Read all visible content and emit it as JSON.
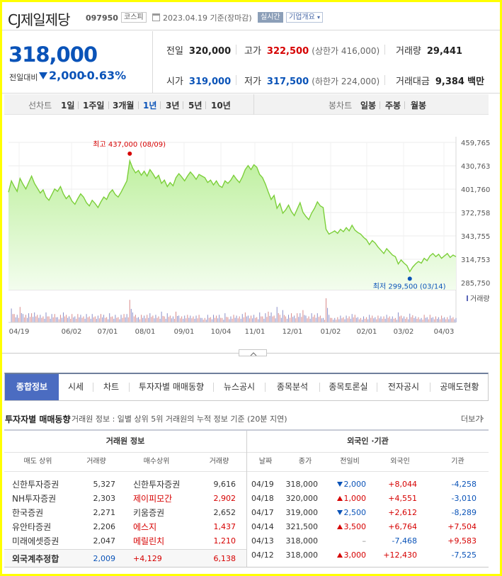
{
  "header": {
    "name": "CJ제일제당",
    "code": "097950",
    "market": "코스피",
    "date": "2023.04.19 기준(장마감)",
    "realtime_label": "실시간",
    "overview_label": "기업개요"
  },
  "price": {
    "current": "318,000",
    "change_label": "전일대비",
    "change": "2,000",
    "change_pct": "-0.63%",
    "prev_label": "전일",
    "prev": "320,000",
    "high_label": "고가",
    "high": "322,500",
    "upper_limit": "(상한가 416,000)",
    "volume_label": "거래량",
    "volume": "29,441",
    "open_label": "시가",
    "open": "319,000",
    "low_label": "저가",
    "low": "317,500",
    "lower_limit": "(하한가 224,000)",
    "amount_label": "거래대금",
    "amount": "9,384",
    "amount_unit": "백만"
  },
  "period_bar": {
    "line_label": "선차트",
    "periods": [
      "1일",
      "1주일",
      "3개월",
      "1년",
      "3년",
      "5년",
      "10년"
    ],
    "selected_period": "1년",
    "candle_label": "봉차트",
    "candles": [
      "일봉",
      "주봉",
      "월봉"
    ]
  },
  "chart_data": {
    "type": "area",
    "y_ticks": [
      "459,765",
      "430,763",
      "401,760",
      "372,758",
      "343,755",
      "314,753",
      "285,750"
    ],
    "ylim": [
      285750,
      459765
    ],
    "x_ticks": [
      "04/19",
      "06/02",
      "07/01",
      "08/01",
      "09/01",
      "10/04",
      "11/01",
      "12/01",
      "01/02",
      "02/01",
      "03/02",
      "04/03"
    ],
    "max_label": "최고 437,000 (08/09)",
    "min_label": "최저 299,500 (03/14)",
    "max_value": 437000,
    "min_value": 299500,
    "volume_legend": "거래량",
    "line_color": "#7ccf3a",
    "fill_color": "#d8f5c4",
    "series": [
      {
        "values": [
          398000,
          412000,
          405000,
          399000,
          415000,
          408000,
          402000,
          410000,
          418000,
          409000,
          403000,
          397000,
          401000,
          392000,
          388000,
          395000,
          402000,
          399000,
          405000,
          396000,
          390000,
          394000,
          387000,
          383000,
          390000,
          396000,
          392000,
          385000,
          381000,
          388000,
          384000,
          379000,
          386000,
          392000,
          389000,
          397000,
          401000,
          395000,
          392000,
          398000,
          405000,
          412000,
          437000,
          428000,
          422000,
          425000,
          419000,
          424000,
          418000,
          426000,
          421000,
          415000,
          419000,
          409000,
          413000,
          405000,
          410000,
          406000,
          416000,
          421000,
          417000,
          412000,
          418000,
          423000,
          419000,
          414000,
          420000,
          418000,
          416000,
          410000,
          413000,
          407000,
          412000,
          406000,
          404000,
          412000,
          409000,
          413000,
          419000,
          414000,
          410000,
          417000,
          426000,
          431000,
          426000,
          432000,
          429000,
          420000,
          416000,
          408000,
          398000,
          389000,
          394000,
          378000,
          384000,
          372000,
          376000,
          382000,
          374000,
          369000,
          377000,
          385000,
          373000,
          368000,
          364000,
          372000,
          378000,
          386000,
          381000,
          379000,
          352000,
          346000,
          348000,
          350000,
          347000,
          352000,
          349000,
          354000,
          350000,
          357000,
          351000,
          348000,
          346000,
          342000,
          339000,
          333000,
          338000,
          335000,
          330000,
          326000,
          322000,
          328000,
          324000,
          320000,
          318000,
          309000,
          314000,
          310000,
          307000,
          299500,
          305000,
          309000,
          312000,
          310000,
          316000,
          313000,
          319000,
          322000,
          318000,
          321000,
          316000,
          319000,
          322000,
          317000,
          320000,
          318000
        ]
      }
    ]
  },
  "tabs": [
    "종합정보",
    "시세",
    "차트",
    "투자자별 매매동향",
    "뉴스공시",
    "종목분석",
    "종목토론실",
    "전자공시",
    "공매도현황"
  ],
  "section": {
    "title": "투자자별 매매동향",
    "subtitle": "거래원 정보 : 일별 상위 5위 거래원의 누적 정보 기준 (20분 지연)",
    "more": "더보기"
  },
  "brokers": {
    "title": "거래원 정보",
    "headers": [
      "매도 상위",
      "거래량",
      "매수상위",
      "거래량"
    ],
    "rows": [
      {
        "sell": "신한투자증권",
        "sell_vol": "5,327",
        "buy": "신한투자증권",
        "buy_vol": "9,616",
        "buy_foreign": false
      },
      {
        "sell": "NH투자증권",
        "sell_vol": "2,303",
        "buy": "제이피모간",
        "buy_vol": "2,902",
        "buy_foreign": true
      },
      {
        "sell": "한국증권",
        "sell_vol": "2,271",
        "buy": "키움증권",
        "buy_vol": "2,652",
        "buy_foreign": false
      },
      {
        "sell": "유안타증권",
        "sell_vol": "2,206",
        "buy": "에스지",
        "buy_vol": "1,437",
        "buy_foreign": true
      },
      {
        "sell": "미래에셋증권",
        "sell_vol": "2,047",
        "buy": "메릴린치",
        "buy_vol": "1,210",
        "buy_foreign": true
      }
    ],
    "summary": {
      "label": "외국계추정합",
      "sell_vol": "2,009",
      "net": "+4,129",
      "buy_vol": "6,138"
    }
  },
  "investors": {
    "title": "외국인 ·기관",
    "headers": [
      "날짜",
      "종가",
      "전일비",
      "외국인",
      "기관"
    ],
    "rows": [
      {
        "date": "04/19",
        "close": "318,000",
        "dir": "down",
        "chg": "2,000",
        "foreign": "+8,044",
        "inst": "-4,258"
      },
      {
        "date": "04/18",
        "close": "320,000",
        "dir": "up",
        "chg": "1,000",
        "foreign": "+4,551",
        "inst": "-3,010"
      },
      {
        "date": "04/17",
        "close": "319,000",
        "dir": "down",
        "chg": "2,500",
        "foreign": "+2,612",
        "inst": "-8,289"
      },
      {
        "date": "04/14",
        "close": "321,500",
        "dir": "up",
        "chg": "3,500",
        "foreign": "+6,764",
        "inst": "+7,504"
      },
      {
        "date": "04/13",
        "close": "318,000",
        "dir": "flat",
        "chg": "–",
        "foreign": "-7,468",
        "inst": "+9,583"
      },
      {
        "date": "04/12",
        "close": "318,000",
        "dir": "up",
        "chg": "3,000",
        "foreign": "+12,430",
        "inst": "-7,525"
      }
    ]
  }
}
